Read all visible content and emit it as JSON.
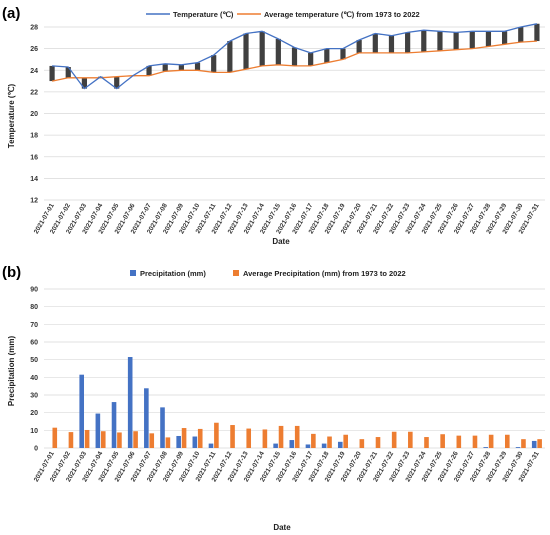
{
  "chart_data": [
    {
      "type": "line",
      "panel_label": "(a)",
      "xlabel": "Date",
      "ylabel": "Temperature (℃)",
      "ylim": [
        12,
        28
      ],
      "yticks": [
        12,
        14,
        16,
        18,
        20,
        22,
        24,
        26,
        28
      ],
      "grid": true,
      "legend_position": "top",
      "categories": [
        "2021-07-01",
        "2021-07-02",
        "2021-07-03",
        "2021-07-04",
        "2021-07-05",
        "2021-07-06",
        "2021-07-07",
        "2021-07-08",
        "2021-07-09",
        "2021-07-10",
        "2021-07-11",
        "2021-07-12",
        "2021-07-13",
        "2021-07-14",
        "2021-07-15",
        "2021-07-16",
        "2021-07-17",
        "2021-07-18",
        "2021-07-19",
        "2021-07-20",
        "2021-07-21",
        "2021-07-22",
        "2021-07-23",
        "2021-07-24",
        "2021-07-25",
        "2021-07-26",
        "2021-07-27",
        "2021-07-28",
        "2021-07-29",
        "2021-07-30",
        "2021-07-31"
      ],
      "series": [
        {
          "name": "Temperature (℃)",
          "color": "#4472c4",
          "values": [
            24.4,
            24.3,
            22.3,
            23.4,
            22.3,
            23.5,
            24.4,
            24.6,
            24.5,
            24.7,
            25.4,
            26.7,
            27.4,
            27.6,
            26.9,
            26.1,
            25.6,
            26.0,
            26.0,
            26.8,
            27.4,
            27.2,
            27.5,
            27.7,
            27.6,
            27.5,
            27.6,
            27.6,
            27.6,
            28.0,
            28.3
          ]
        },
        {
          "name": "Average temperature (℃) from 1973 to 2022",
          "color": "#ed7d31",
          "values": [
            23.0,
            23.3,
            23.3,
            23.3,
            23.4,
            23.5,
            23.5,
            23.9,
            24.0,
            24.0,
            23.8,
            23.8,
            24.1,
            24.4,
            24.5,
            24.4,
            24.4,
            24.7,
            25.0,
            25.6,
            25.6,
            25.6,
            25.6,
            25.7,
            25.8,
            25.9,
            26.0,
            26.2,
            26.4,
            26.6,
            26.7
          ]
        }
      ]
    },
    {
      "type": "bar",
      "panel_label": "(b)",
      "xlabel": "Date",
      "ylabel": "Precipitation (mm)",
      "ylim": [
        0,
        90
      ],
      "yticks": [
        0,
        10,
        20,
        30,
        40,
        50,
        60,
        70,
        80,
        90
      ],
      "grid": true,
      "legend_position": "top",
      "categories": [
        "2021-07-01",
        "2021-07-02",
        "2021-07-03",
        "2021-07-04",
        "2021-07-05",
        "2021-07-06",
        "2021-07-07",
        "2021-07-08",
        "2021-07-09",
        "2021-07-10",
        "2021-07-11",
        "2021-07-12",
        "2021-07-13",
        "2021-07-14",
        "2021-07-15",
        "2021-07-16",
        "2021-07-17",
        "2021-07-18",
        "2021-07-19",
        "2021-07-20",
        "2021-07-21",
        "2021-07-22",
        "2021-07-23",
        "2021-07-24",
        "2021-07-25",
        "2021-07-26",
        "2021-07-27",
        "2021-07-28",
        "2021-07-29",
        "2021-07-30",
        "2021-07-31"
      ],
      "series": [
        {
          "name": "Precipitation (mm)",
          "color": "#4472c4",
          "values": [
            0,
            0,
            41.5,
            19.5,
            26,
            51.5,
            33.8,
            23,
            6.8,
            6.5,
            2.5,
            0,
            0,
            0,
            2.5,
            4.5,
            2,
            2.5,
            3.5,
            0,
            0,
            0,
            0,
            0,
            0,
            0,
            0,
            0.5,
            0,
            0.5,
            4
          ]
        },
        {
          "name": "Average Precipitation (mm) from 1973 to 2022",
          "color": "#ed7d31",
          "values": [
            11.5,
            9,
            10.2,
            9.5,
            8.8,
            9.5,
            8.3,
            6,
            11.3,
            10.8,
            14.3,
            13,
            11,
            10.5,
            12.5,
            12.5,
            8,
            6.5,
            7.5,
            5,
            6.2,
            9.2,
            9.2,
            6.2,
            7.8,
            7,
            7,
            7.5,
            7.5,
            5,
            5
          ]
        }
      ]
    }
  ]
}
